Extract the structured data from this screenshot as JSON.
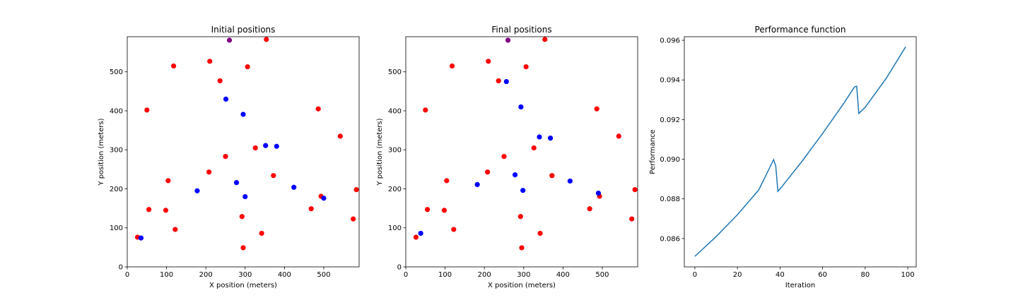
{
  "chart_data": [
    {
      "type": "scatter",
      "title": "Initial positions",
      "xlabel": "X position (meters)",
      "ylabel": "Y position (meters)",
      "xlim": [
        0,
        590
      ],
      "ylim": [
        0,
        590
      ],
      "xticks": [
        0,
        100,
        200,
        300,
        400,
        500
      ],
      "yticks": [
        0,
        100,
        200,
        300,
        400,
        500
      ],
      "series": [
        {
          "name": "red",
          "color": "#ff0000",
          "points": [
            [
              354,
              583
            ],
            [
              118,
              515
            ],
            [
              210,
              527
            ],
            [
              306,
              513
            ],
            [
              236,
              477
            ],
            [
              50,
              402
            ],
            [
              486,
              405
            ],
            [
              542,
              335
            ],
            [
              250,
              283
            ],
            [
              326,
              305
            ],
            [
              372,
              234
            ],
            [
              208,
              243
            ],
            [
              104,
              221
            ],
            [
              583,
              198
            ],
            [
              55,
              147
            ],
            [
              98,
              145
            ],
            [
              468,
              149
            ],
            [
              493,
              181
            ],
            [
              122,
              96
            ],
            [
              292,
              129
            ],
            [
              342,
              86
            ],
            [
              575,
              123
            ],
            [
              26,
              76
            ],
            [
              295,
              49
            ]
          ]
        },
        {
          "name": "blue",
          "color": "#0000ff",
          "points": [
            [
              251,
              430
            ],
            [
              295,
              391
            ],
            [
              352,
              311
            ],
            [
              380,
              309
            ],
            [
              178,
              195
            ],
            [
              278,
              216
            ],
            [
              300,
              180
            ],
            [
              424,
              204
            ],
            [
              500,
              176
            ],
            [
              35,
              74
            ]
          ]
        },
        {
          "name": "purple",
          "color": "#800080",
          "points": [
            [
              260,
              581
            ]
          ]
        }
      ]
    },
    {
      "type": "scatter",
      "title": "Final positions",
      "xlabel": "X position (meters)",
      "ylabel": "Y position (meters)",
      "xlim": [
        0,
        590
      ],
      "ylim": [
        0,
        590
      ],
      "xticks": [
        0,
        100,
        200,
        300,
        400,
        500
      ],
      "yticks": [
        0,
        100,
        200,
        300,
        400,
        500
      ],
      "series": [
        {
          "name": "red",
          "color": "#ff0000",
          "points": [
            [
              354,
              583
            ],
            [
              118,
              515
            ],
            [
              210,
              527
            ],
            [
              306,
              513
            ],
            [
              236,
              477
            ],
            [
              50,
              402
            ],
            [
              486,
              405
            ],
            [
              542,
              335
            ],
            [
              250,
              283
            ],
            [
              326,
              305
            ],
            [
              372,
              234
            ],
            [
              208,
              243
            ],
            [
              104,
              221
            ],
            [
              583,
              198
            ],
            [
              55,
              147
            ],
            [
              98,
              145
            ],
            [
              468,
              149
            ],
            [
              493,
              181
            ],
            [
              122,
              96
            ],
            [
              292,
              129
            ],
            [
              342,
              86
            ],
            [
              575,
              123
            ],
            [
              26,
              76
            ],
            [
              295,
              49
            ]
          ]
        },
        {
          "name": "blue",
          "color": "#0000ff",
          "points": [
            [
              256,
              475
            ],
            [
              293,
              410
            ],
            [
              340,
              333
            ],
            [
              368,
              330
            ],
            [
              278,
              236
            ],
            [
              182,
              211
            ],
            [
              298,
              196
            ],
            [
              418,
              220
            ],
            [
              490,
              189
            ],
            [
              38,
              86
            ]
          ]
        },
        {
          "name": "purple",
          "color": "#800080",
          "points": [
            [
              260,
              581
            ]
          ]
        }
      ]
    },
    {
      "type": "line",
      "title": "Performance function",
      "xlabel": "Iteration",
      "ylabel": "Performance",
      "xlim": [
        -4.95,
        103.95
      ],
      "ylim": [
        0.08457,
        0.09618
      ],
      "xticks": [
        0,
        20,
        40,
        60,
        80,
        100
      ],
      "yticks": [
        0.086,
        0.088,
        0.09,
        0.092,
        0.094,
        0.096
      ],
      "ytick_labels": [
        "0.086",
        "0.088",
        "0.090",
        "0.092",
        "0.094",
        "0.096"
      ],
      "series": [
        {
          "name": "Performance",
          "color": "#1f77b4",
          "points": [
            [
              0,
              0.0851
            ],
            [
              10,
              0.0861
            ],
            [
              20,
              0.0872
            ],
            [
              30,
              0.08845
            ],
            [
              37,
              0.08998
            ],
            [
              38,
              0.08965
            ],
            [
              39,
              0.08838
            ],
            [
              40,
              0.0885
            ],
            [
              50,
              0.08985
            ],
            [
              60,
              0.0913
            ],
            [
              70,
              0.09283
            ],
            [
              75,
              0.09365
            ],
            [
              76,
              0.09368
            ],
            [
              77,
              0.09231
            ],
            [
              80,
              0.09262
            ],
            [
              90,
              0.0941
            ],
            [
              99,
              0.09567
            ]
          ]
        }
      ]
    }
  ]
}
